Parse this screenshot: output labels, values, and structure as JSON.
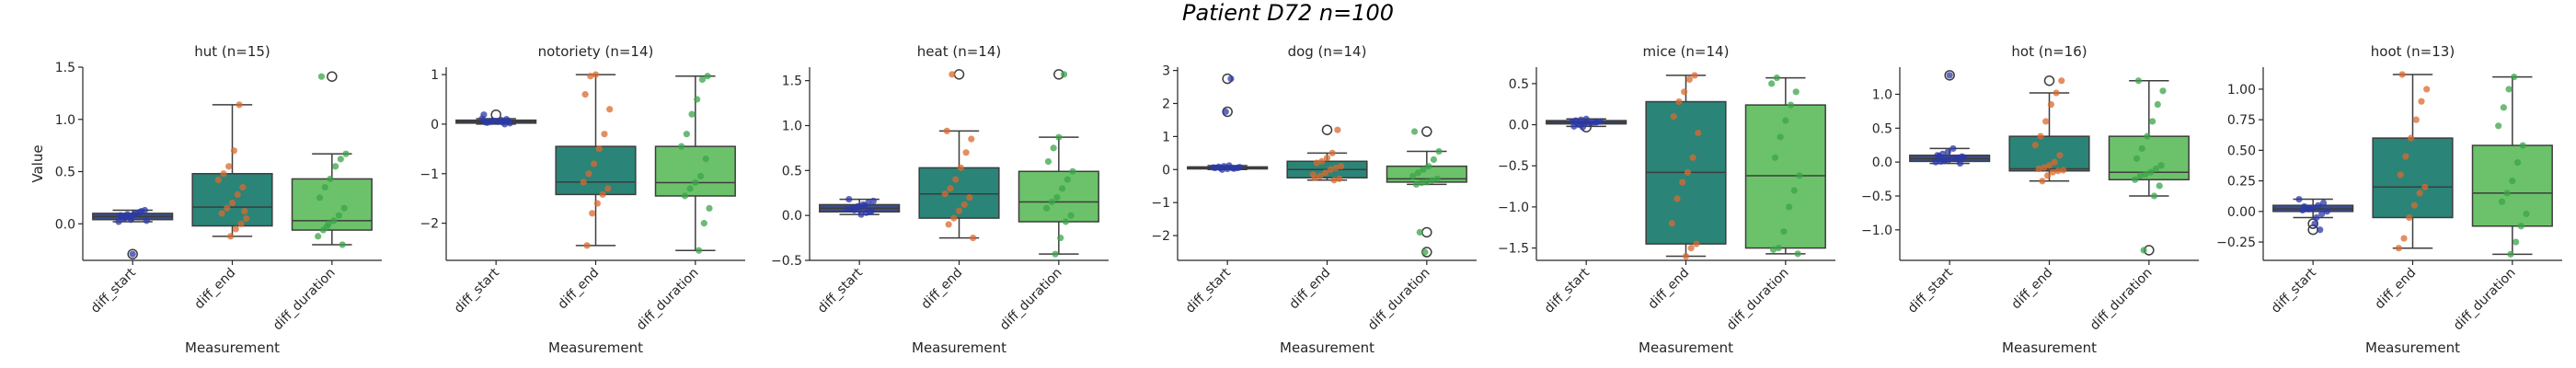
{
  "figure": {
    "title": "Patient D72 n=100"
  },
  "colors": {
    "diff_start": "#3b4f8c",
    "diff_end": "#2a8478",
    "diff_duration": "#6cc26a",
    "strip_start": "#2b3aa8",
    "strip_end": "#d9692f",
    "strip_duration": "#3aa449"
  },
  "chart_data": [
    {
      "type": "box",
      "title": "hut (n=15)",
      "xlabel": "Measurement",
      "ylabel": "Value",
      "categories": [
        "diff_start",
        "diff_end",
        "diff_duration"
      ],
      "ylim": [
        -0.35,
        1.5
      ],
      "yticks": [
        0.0,
        0.5,
        1.0,
        1.5
      ],
      "ytick_labels": [
        "0.0",
        "0.5",
        "1.0",
        "1.5"
      ],
      "boxes": [
        {
          "q1": 0.04,
          "median": 0.07,
          "q3": 0.1,
          "whislo": 0.02,
          "whishi": 0.13,
          "fliers": [
            -0.29
          ]
        },
        {
          "q1": -0.02,
          "median": 0.16,
          "q3": 0.48,
          "whislo": -0.12,
          "whishi": 1.14,
          "fliers": []
        },
        {
          "q1": -0.06,
          "median": 0.03,
          "q3": 0.43,
          "whislo": -0.2,
          "whishi": 0.67,
          "fliers": [
            1.41
          ]
        }
      ],
      "points": [
        [
          0.02,
          0.05,
          0.07,
          0.09,
          0.11,
          0.13,
          0.08,
          0.06,
          0.04,
          0.1,
          0.12,
          0.03,
          0.07,
          0.09,
          -0.29
        ],
        [
          -0.12,
          -0.05,
          0.0,
          0.05,
          0.1,
          0.15,
          0.2,
          0.28,
          0.35,
          0.42,
          0.48,
          0.55,
          0.7,
          1.14,
          0.12
        ],
        [
          -0.2,
          -0.12,
          -0.06,
          0.0,
          0.03,
          0.08,
          0.15,
          0.25,
          0.35,
          0.43,
          0.55,
          0.62,
          0.67,
          1.41,
          -0.03
        ]
      ]
    },
    {
      "type": "box",
      "title": "notoriety (n=14)",
      "xlabel": "Measurement",
      "ylabel": "",
      "categories": [
        "diff_start",
        "diff_end",
        "diff_duration"
      ],
      "ylim": [
        -2.75,
        1.15
      ],
      "yticks": [
        -2,
        -1,
        0,
        1
      ],
      "ytick_labels": [
        "−2",
        "−1",
        "0",
        "1"
      ],
      "boxes": [
        {
          "q1": 0.02,
          "median": 0.05,
          "q3": 0.08,
          "whislo": 0.0,
          "whishi": 0.11,
          "fliers": [
            0.19
          ]
        },
        {
          "q1": -1.42,
          "median": -1.17,
          "q3": -0.45,
          "whislo": -2.45,
          "whishi": 1.0,
          "fliers": []
        },
        {
          "q1": -1.45,
          "median": -1.18,
          "q3": -0.45,
          "whislo": -2.55,
          "whishi": 0.97,
          "fliers": []
        }
      ],
      "points": [
        [
          0.0,
          0.02,
          0.04,
          0.05,
          0.06,
          0.08,
          0.1,
          0.11,
          0.03,
          0.07,
          0.05,
          0.04,
          0.06,
          0.19
        ],
        [
          -2.45,
          -1.8,
          -1.6,
          -1.42,
          -1.3,
          -1.17,
          -1.0,
          -0.8,
          -0.5,
          -0.2,
          0.3,
          0.6,
          0.97,
          1.0
        ],
        [
          -2.55,
          -2.0,
          -1.7,
          -1.45,
          -1.3,
          -1.18,
          -1.05,
          -0.7,
          -0.45,
          -0.2,
          0.2,
          0.5,
          0.9,
          0.97
        ]
      ]
    },
    {
      "type": "box",
      "title": "heat (n=14)",
      "xlabel": "Measurement",
      "ylabel": "",
      "categories": [
        "diff_start",
        "diff_end",
        "diff_duration"
      ],
      "ylim": [
        -0.5,
        1.65
      ],
      "yticks": [
        -0.5,
        0.0,
        0.5,
        1.0,
        1.5
      ],
      "ytick_labels": [
        "−0.5",
        "0.0",
        "0.5",
        "1.0",
        "1.5"
      ],
      "boxes": [
        {
          "q1": 0.04,
          "median": 0.08,
          "q3": 0.12,
          "whislo": 0.01,
          "whishi": 0.18,
          "fliers": []
        },
        {
          "q1": -0.03,
          "median": 0.24,
          "q3": 0.53,
          "whislo": -0.25,
          "whishi": 0.94,
          "fliers": [
            1.57
          ]
        },
        {
          "q1": -0.07,
          "median": 0.15,
          "q3": 0.49,
          "whislo": -0.43,
          "whishi": 0.87,
          "fliers": [
            1.57
          ]
        }
      ],
      "points": [
        [
          0.01,
          0.03,
          0.05,
          0.07,
          0.08,
          0.1,
          0.12,
          0.14,
          0.16,
          0.18,
          0.06,
          0.09,
          0.11,
          0.04
        ],
        [
          -0.25,
          -0.1,
          -0.03,
          0.05,
          0.12,
          0.2,
          0.24,
          0.3,
          0.4,
          0.53,
          0.7,
          0.85,
          0.94,
          1.57
        ],
        [
          -0.43,
          -0.25,
          -0.07,
          0.0,
          0.08,
          0.15,
          0.2,
          0.3,
          0.4,
          0.49,
          0.6,
          0.75,
          0.87,
          1.57
        ]
      ]
    },
    {
      "type": "box",
      "title": "dog (n=14)",
      "xlabel": "Measurement",
      "ylabel": "",
      "categories": [
        "diff_start",
        "diff_end",
        "diff_duration"
      ],
      "ylim": [
        -2.75,
        3.1
      ],
      "yticks": [
        -2,
        -1,
        0,
        1,
        2,
        3
      ],
      "ytick_labels": [
        "−2",
        "−1",
        "0",
        "1",
        "2",
        "3"
      ],
      "boxes": [
        {
          "q1": 0.02,
          "median": 0.05,
          "q3": 0.08,
          "whislo": 0.0,
          "whishi": 0.12,
          "fliers": [
            1.75,
            2.75
          ]
        },
        {
          "q1": -0.25,
          "median": 0.0,
          "q3": 0.25,
          "whislo": -0.32,
          "whishi": 0.5,
          "fliers": [
            1.2
          ]
        },
        {
          "q1": -0.38,
          "median": -0.28,
          "q3": 0.1,
          "whislo": -0.45,
          "whishi": 0.55,
          "fliers": [
            1.15,
            -1.9,
            -2.5
          ]
        }
      ],
      "points": [
        [
          0.0,
          0.02,
          0.04,
          0.05,
          0.06,
          0.08,
          0.1,
          0.12,
          0.03,
          0.07,
          0.05,
          0.04,
          1.75,
          2.75
        ],
        [
          -0.32,
          -0.28,
          -0.25,
          -0.2,
          -0.1,
          0.0,
          0.05,
          0.1,
          0.2,
          0.25,
          0.35,
          0.5,
          1.2,
          -0.15
        ],
        [
          -0.45,
          -0.4,
          -0.38,
          -0.33,
          -0.28,
          -0.2,
          -0.1,
          0.0,
          0.1,
          0.3,
          0.55,
          1.15,
          -1.9,
          -2.5
        ]
      ]
    },
    {
      "type": "box",
      "title": "mice (n=14)",
      "xlabel": "Measurement",
      "ylabel": "",
      "categories": [
        "diff_start",
        "diff_end",
        "diff_duration"
      ],
      "ylim": [
        -1.65,
        0.7
      ],
      "yticks": [
        -1.5,
        -1.0,
        -0.5,
        0.0,
        0.5
      ],
      "ytick_labels": [
        "−1.5",
        "−1.0",
        "−0.5",
        "0.0",
        "0.5"
      ],
      "boxes": [
        {
          "q1": 0.01,
          "median": 0.03,
          "q3": 0.05,
          "whislo": -0.02,
          "whishi": 0.07,
          "fliers": [
            -0.03
          ]
        },
        {
          "q1": -1.45,
          "median": -0.58,
          "q3": 0.28,
          "whislo": -1.6,
          "whishi": 0.6,
          "fliers": []
        },
        {
          "q1": -1.5,
          "median": -0.62,
          "q3": 0.24,
          "whislo": -1.57,
          "whishi": 0.57,
          "fliers": []
        }
      ],
      "points": [
        [
          -0.02,
          0.0,
          0.01,
          0.02,
          0.03,
          0.04,
          0.05,
          0.06,
          0.07,
          0.02,
          0.03,
          0.04,
          0.01,
          -0.03
        ],
        [
          -1.6,
          -1.5,
          -1.45,
          -1.2,
          -0.9,
          -0.7,
          -0.58,
          -0.4,
          -0.1,
          0.1,
          0.28,
          0.4,
          0.55,
          0.6
        ],
        [
          -1.57,
          -1.52,
          -1.5,
          -1.3,
          -1.0,
          -0.8,
          -0.62,
          -0.4,
          -0.15,
          0.05,
          0.24,
          0.4,
          0.5,
          0.57
        ]
      ]
    },
    {
      "type": "box",
      "title": "hot (n=16)",
      "xlabel": "Measurement",
      "ylabel": "",
      "categories": [
        "diff_start",
        "diff_end",
        "diff_duration"
      ],
      "ylim": [
        -1.45,
        1.4
      ],
      "yticks": [
        -1.0,
        -0.5,
        0.0,
        0.5,
        1.0
      ],
      "ytick_labels": [
        "−1.0",
        "−0.5",
        "0.0",
        "0.5",
        "1.0"
      ],
      "boxes": [
        {
          "q1": 0.01,
          "median": 0.05,
          "q3": 0.1,
          "whislo": -0.02,
          "whishi": 0.2,
          "fliers": [
            1.28
          ]
        },
        {
          "q1": -0.13,
          "median": -0.1,
          "q3": 0.38,
          "whislo": -0.28,
          "whishi": 1.02,
          "fliers": [
            1.2
          ]
        },
        {
          "q1": -0.26,
          "median": -0.15,
          "q3": 0.38,
          "whislo": -0.5,
          "whishi": 1.2,
          "fliers": [
            -1.3
          ]
        }
      ],
      "points": [
        [
          -0.02,
          0.0,
          0.01,
          0.03,
          0.05,
          0.06,
          0.08,
          0.1,
          0.12,
          0.15,
          0.2,
          0.04,
          0.07,
          0.09,
          0.02,
          1.28
        ],
        [
          -0.28,
          -0.2,
          -0.15,
          -0.13,
          -0.12,
          -0.1,
          -0.08,
          -0.05,
          0.0,
          0.1,
          0.25,
          0.38,
          0.6,
          0.85,
          1.02,
          1.2
        ],
        [
          -0.5,
          -0.35,
          -0.26,
          -0.2,
          -0.18,
          -0.15,
          -0.1,
          -0.05,
          0.05,
          0.2,
          0.38,
          0.6,
          0.85,
          1.05,
          1.2,
          -1.3
        ]
      ]
    },
    {
      "type": "box",
      "title": "hoot (n=13)",
      "xlabel": "Measurement",
      "ylabel": "",
      "categories": [
        "diff_start",
        "diff_end",
        "diff_duration"
      ],
      "ylim": [
        -0.4,
        1.18
      ],
      "yticks": [
        -0.25,
        0.0,
        0.25,
        0.5,
        0.75,
        1.0
      ],
      "ytick_labels": [
        "−0.25",
        "0.00",
        "0.25",
        "0.50",
        "0.75",
        "1.00"
      ],
      "boxes": [
        {
          "q1": 0.0,
          "median": 0.02,
          "q3": 0.05,
          "whislo": -0.05,
          "whishi": 0.1,
          "fliers": [
            -0.1,
            -0.15
          ]
        },
        {
          "q1": -0.05,
          "median": 0.2,
          "q3": 0.6,
          "whislo": -0.3,
          "whishi": 1.12,
          "fliers": []
        },
        {
          "q1": -0.12,
          "median": 0.15,
          "q3": 0.54,
          "whislo": -0.35,
          "whishi": 1.1,
          "fliers": []
        }
      ],
      "points": [
        [
          -0.05,
          -0.02,
          0.0,
          0.01,
          0.02,
          0.03,
          0.05,
          0.07,
          0.1,
          0.04,
          0.02,
          -0.1,
          -0.15
        ],
        [
          -0.3,
          -0.22,
          -0.05,
          0.05,
          0.15,
          0.2,
          0.3,
          0.45,
          0.6,
          0.75,
          0.9,
          1.0,
          1.12
        ],
        [
          -0.35,
          -0.25,
          -0.12,
          -0.02,
          0.08,
          0.15,
          0.25,
          0.4,
          0.54,
          0.7,
          0.85,
          1.0,
          1.1
        ]
      ]
    }
  ]
}
